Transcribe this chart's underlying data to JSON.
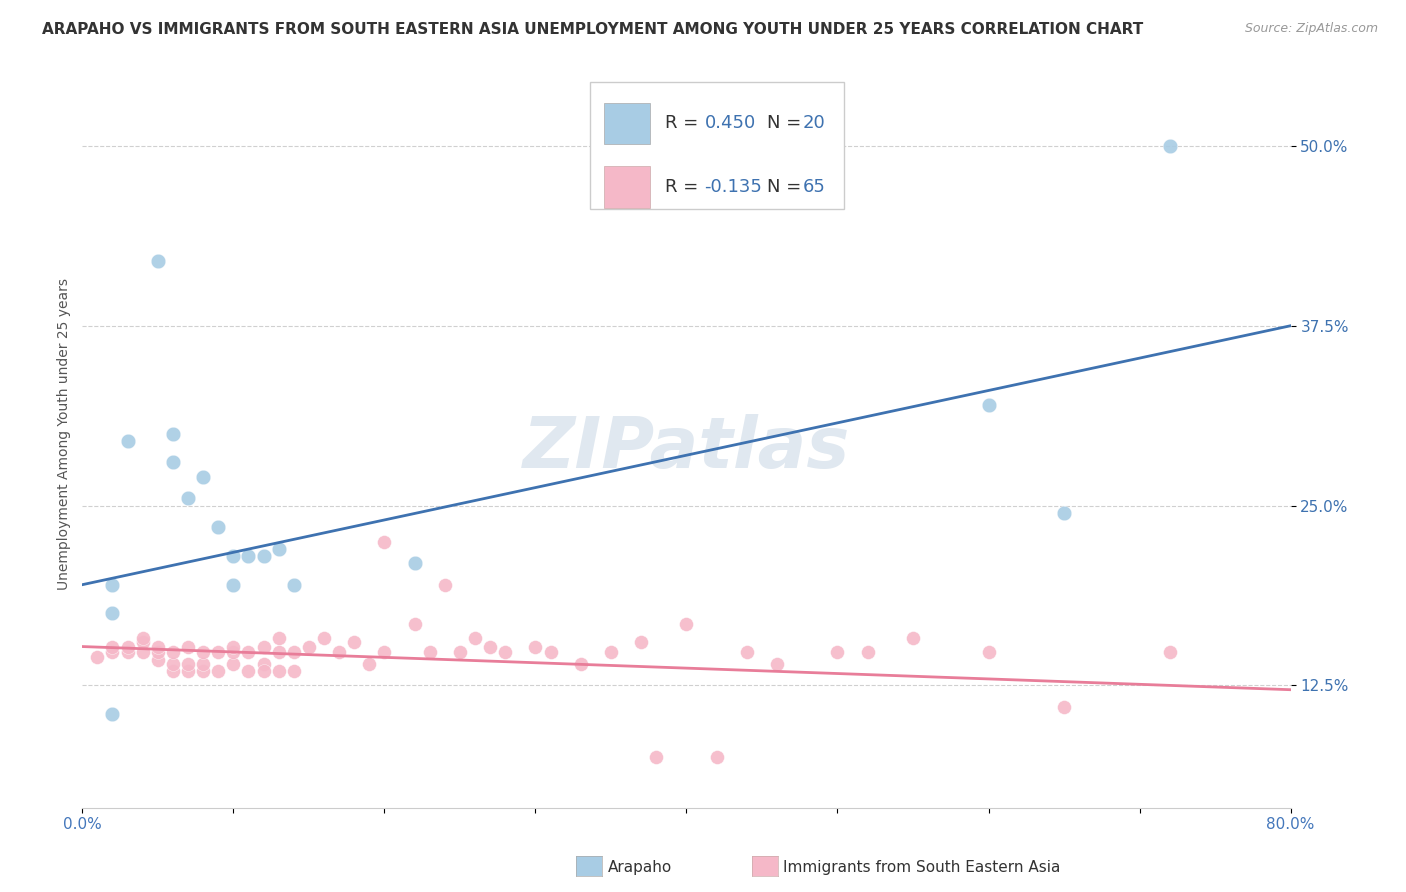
{
  "title": "ARAPAHO VS IMMIGRANTS FROM SOUTH EASTERN ASIA UNEMPLOYMENT AMONG YOUTH UNDER 25 YEARS CORRELATION CHART",
  "source": "Source: ZipAtlas.com",
  "ylabel": "Unemployment Among Youth under 25 years",
  "xlim": [
    0.0,
    0.8
  ],
  "ylim": [
    0.04,
    0.56
  ],
  "xticks": [
    0.0,
    0.1,
    0.2,
    0.3,
    0.4,
    0.5,
    0.6,
    0.7,
    0.8
  ],
  "xtick_labels": [
    "0.0%",
    "",
    "",
    "",
    "",
    "",
    "",
    "",
    "80.0%"
  ],
  "ytick_positions": [
    0.125,
    0.25,
    0.375,
    0.5
  ],
  "ytick_labels": [
    "12.5%",
    "25.0%",
    "37.5%",
    "50.0%"
  ],
  "watermark": "ZIPatlas",
  "legend_r1": "0.450",
  "legend_n1": "20",
  "legend_r2": "-0.135",
  "legend_n2": "65",
  "blue_color": "#a8cce4",
  "pink_color": "#f5b8c8",
  "blue_line_color": "#3e72b0",
  "pink_line_color": "#e87d99",
  "blue_scatter_x": [
    0.02,
    0.05,
    0.06,
    0.09,
    0.11,
    0.12,
    0.13,
    0.02,
    0.03,
    0.06,
    0.1,
    0.22,
    0.6,
    0.65,
    0.72,
    0.02,
    0.1,
    0.08,
    0.07,
    0.14
  ],
  "blue_scatter_y": [
    0.175,
    0.42,
    0.3,
    0.235,
    0.215,
    0.215,
    0.22,
    0.105,
    0.295,
    0.28,
    0.215,
    0.21,
    0.32,
    0.245,
    0.5,
    0.195,
    0.195,
    0.27,
    0.255,
    0.195
  ],
  "pink_scatter_x": [
    0.01,
    0.02,
    0.02,
    0.03,
    0.03,
    0.04,
    0.04,
    0.04,
    0.05,
    0.05,
    0.05,
    0.06,
    0.06,
    0.06,
    0.07,
    0.07,
    0.07,
    0.08,
    0.08,
    0.08,
    0.09,
    0.09,
    0.1,
    0.1,
    0.1,
    0.11,
    0.11,
    0.12,
    0.12,
    0.12,
    0.13,
    0.13,
    0.13,
    0.14,
    0.14,
    0.15,
    0.16,
    0.17,
    0.18,
    0.19,
    0.2,
    0.2,
    0.22,
    0.23,
    0.24,
    0.25,
    0.26,
    0.27,
    0.28,
    0.3,
    0.31,
    0.33,
    0.35,
    0.37,
    0.38,
    0.4,
    0.42,
    0.44,
    0.46,
    0.5,
    0.52,
    0.55,
    0.6,
    0.65,
    0.72
  ],
  "pink_scatter_y": [
    0.145,
    0.148,
    0.152,
    0.148,
    0.152,
    0.148,
    0.155,
    0.158,
    0.143,
    0.148,
    0.152,
    0.135,
    0.14,
    0.148,
    0.135,
    0.14,
    0.152,
    0.135,
    0.14,
    0.148,
    0.135,
    0.148,
    0.14,
    0.148,
    0.152,
    0.135,
    0.148,
    0.14,
    0.135,
    0.152,
    0.135,
    0.148,
    0.158,
    0.135,
    0.148,
    0.152,
    0.158,
    0.148,
    0.155,
    0.14,
    0.225,
    0.148,
    0.168,
    0.148,
    0.195,
    0.148,
    0.158,
    0.152,
    0.148,
    0.152,
    0.148,
    0.14,
    0.148,
    0.155,
    0.075,
    0.168,
    0.075,
    0.148,
    0.14,
    0.148,
    0.148,
    0.158,
    0.148,
    0.11,
    0.148
  ],
  "blue_trend_x": [
    0.0,
    0.8
  ],
  "blue_trend_y_start": 0.195,
  "blue_trend_y_end": 0.375,
  "pink_trend_x": [
    0.0,
    0.8
  ],
  "pink_trend_y_start": 0.152,
  "pink_trend_y_end": 0.122,
  "grid_color": "#d0d0d0",
  "background_color": "#ffffff",
  "title_fontsize": 11,
  "axis_label_fontsize": 10,
  "tick_fontsize": 11,
  "watermark_fontsize": 52,
  "watermark_color": "#e0e8f0",
  "legend_fontsize": 13
}
